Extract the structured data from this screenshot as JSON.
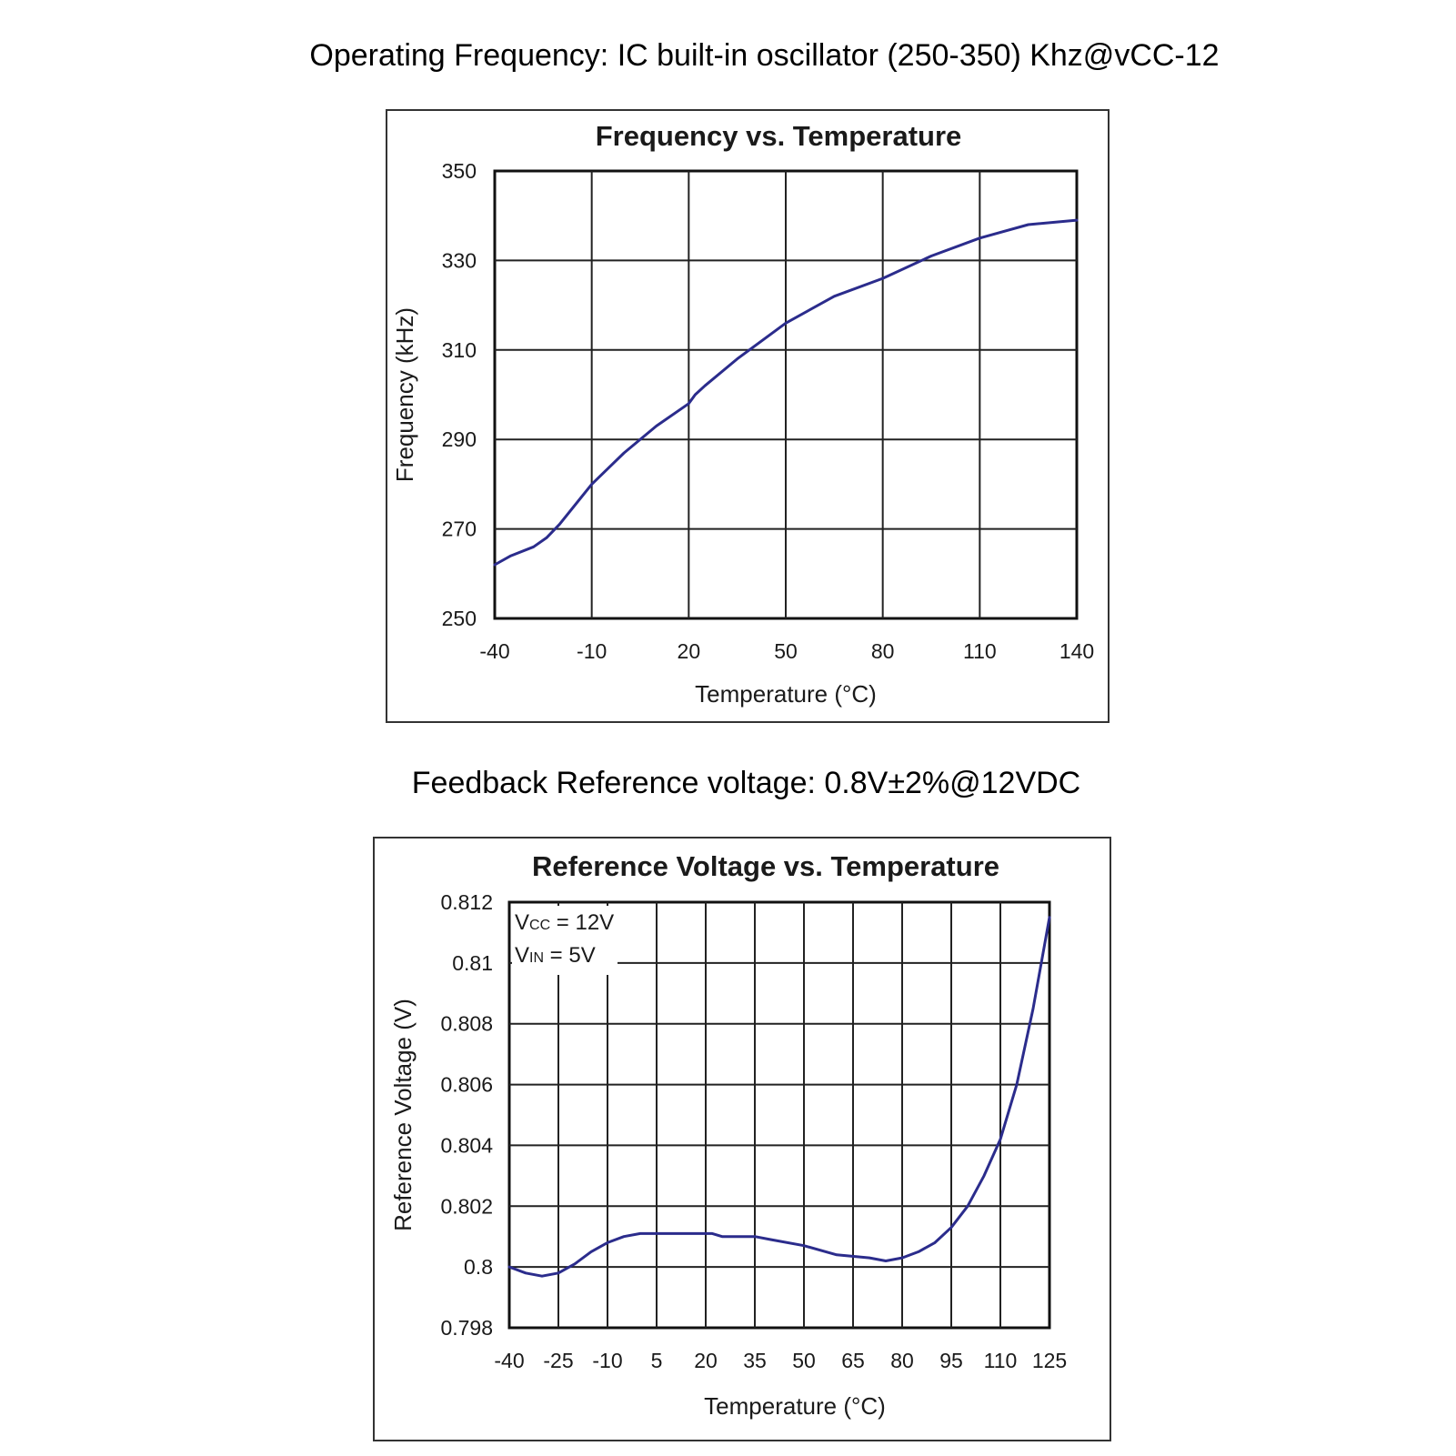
{
  "headings": {
    "operating_frequency": "Operating Frequency: IC built-in oscillator (250-350) Khz@vCC-12",
    "feedback_reference": "Feedback Reference voltage: 0.8V±2%@12VDC"
  },
  "chart_data": [
    {
      "type": "line",
      "title": "Frequency vs. Temperature",
      "xlabel": "Temperature (°C)",
      "ylabel": "Frequency (kHz)",
      "xlim": [
        -40,
        140
      ],
      "ylim": [
        250,
        350
      ],
      "x_ticks": [
        -40,
        -10,
        20,
        50,
        80,
        110,
        140
      ],
      "y_ticks": [
        250,
        270,
        290,
        310,
        330,
        350
      ],
      "grid": true,
      "color": "#2b2c8c",
      "series": [
        {
          "x": [
            -40,
            -35,
            -28,
            -24,
            -20,
            -10,
            0,
            10,
            20,
            22,
            25,
            35,
            50,
            65,
            80,
            95,
            110,
            125,
            140
          ],
          "y": [
            262,
            264,
            266,
            268,
            271,
            280,
            287,
            293,
            298,
            300,
            302,
            308,
            316,
            322,
            326,
            331,
            335,
            338,
            339
          ]
        }
      ]
    },
    {
      "type": "line",
      "title": "Reference Voltage vs. Temperature",
      "xlabel": "Temperature (°C)",
      "ylabel": "Reference Voltage (V)",
      "xlim": [
        -40,
        125
      ],
      "ylim": [
        0.798,
        0.812
      ],
      "x_ticks": [
        -40,
        -25,
        -10,
        5,
        20,
        35,
        50,
        65,
        80,
        95,
        110,
        125
      ],
      "y_ticks": [
        "0.798",
        "0.8",
        "0.802",
        "0.804",
        "0.806",
        "0.808",
        "0.81",
        "0.812"
      ],
      "grid": true,
      "color": "#2b2c8c",
      "annotations": [
        {
          "main": "V",
          "sub": "CC",
          "rest": " = 12V"
        },
        {
          "main": "V",
          "sub": "IN",
          "rest": " = 5V"
        }
      ],
      "series": [
        {
          "x": [
            -40,
            -35,
            -30,
            -25,
            -20,
            -15,
            -10,
            -5,
            0,
            5,
            10,
            15,
            20,
            22,
            25,
            30,
            35,
            40,
            50,
            60,
            70,
            75,
            80,
            85,
            90,
            95,
            100,
            105,
            110,
            115,
            120,
            125
          ],
          "y": [
            0.8,
            0.7998,
            0.7997,
            0.7998,
            0.8001,
            0.8005,
            0.8008,
            0.801,
            0.8011,
            0.8011,
            0.8011,
            0.8011,
            0.8011,
            0.8011,
            0.801,
            0.801,
            0.801,
            0.8009,
            0.8007,
            0.8004,
            0.8003,
            0.8002,
            0.8003,
            0.8005,
            0.8008,
            0.8013,
            0.802,
            0.803,
            0.8042,
            0.806,
            0.8085,
            0.8115
          ]
        }
      ]
    }
  ]
}
